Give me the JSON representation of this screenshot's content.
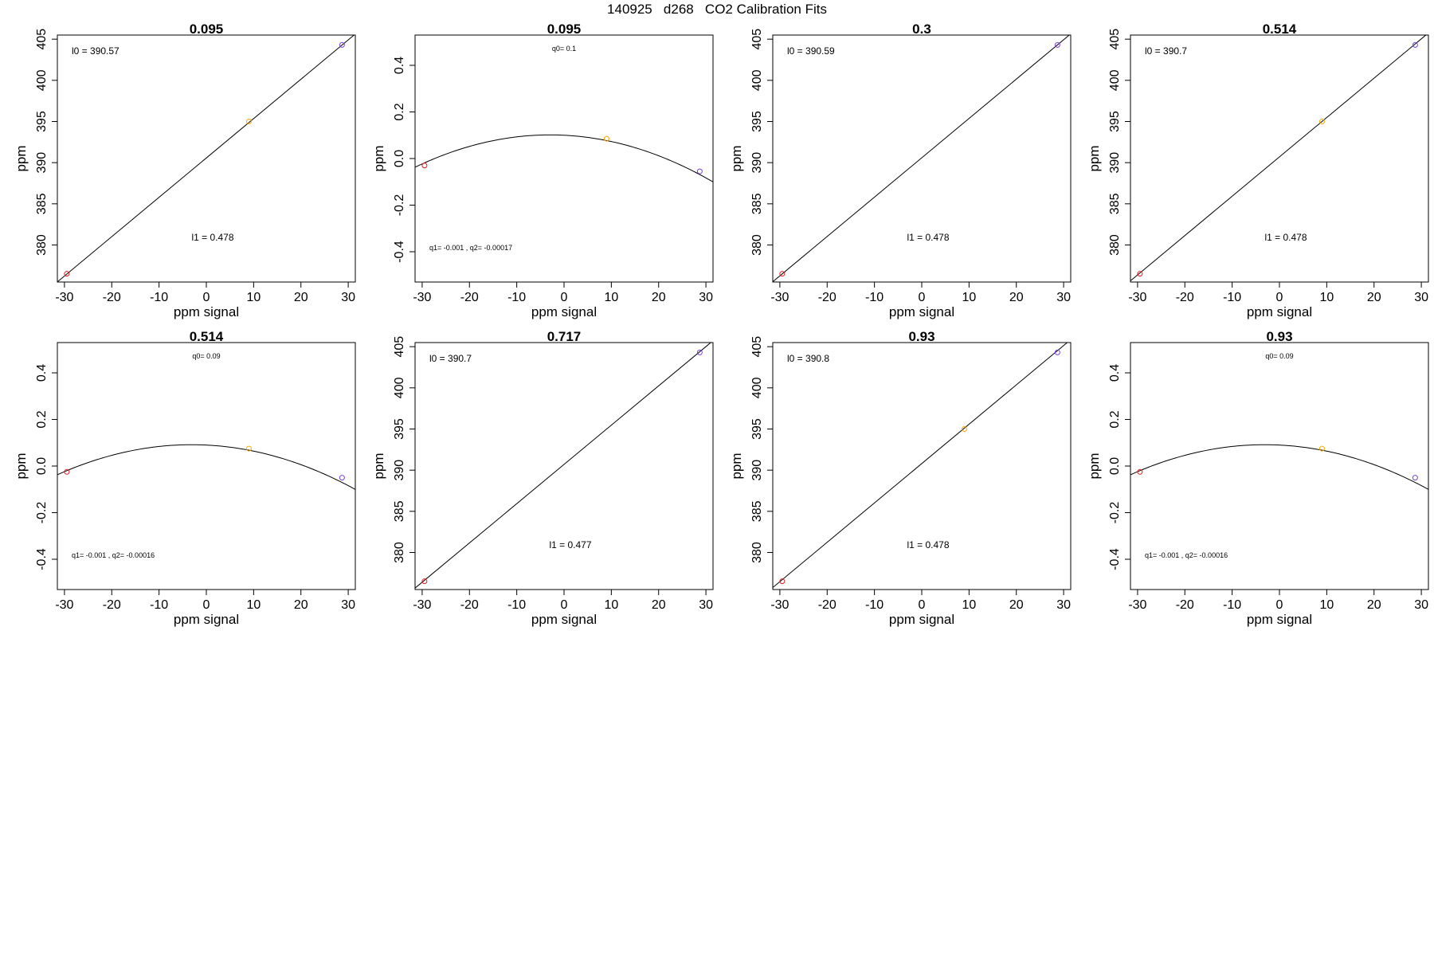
{
  "figure": {
    "title": "140925   d268   CO2 Calibration Fits"
  },
  "chart_data": [
    {
      "type": "line",
      "fit": "linear",
      "title": "0.095",
      "xlabel": "ppm signal",
      "ylabel": "ppm",
      "xlim": [
        -31.5,
        31.5
      ],
      "ylim": [
        375.5,
        405.5
      ],
      "xticks": [
        -30,
        -20,
        -10,
        0,
        10,
        20,
        30
      ],
      "yticks": [
        380,
        385,
        390,
        395,
        400,
        405
      ],
      "line": {
        "intercept": 390.57,
        "slope": 0.478
      },
      "points": [
        {
          "x": -29.5,
          "y": 376.5,
          "color": "#e31a1c"
        },
        {
          "x": 9,
          "y": 395,
          "color": "#ffa500"
        },
        {
          "x": 28.7,
          "y": 404.3,
          "color": "#7b3fe4"
        }
      ],
      "annotations": [
        "l0 =  390.57",
        "l1 =  0.478"
      ]
    },
    {
      "type": "line",
      "fit": "quadratic",
      "title": "0.095",
      "xlabel": "ppm signal",
      "ylabel": "ppm",
      "xlim": [
        -31.5,
        31.5
      ],
      "ylim": [
        -0.53,
        0.53
      ],
      "xticks": [
        -30,
        -20,
        -10,
        0,
        10,
        20,
        30
      ],
      "yticks": [
        -0.4,
        -0.2,
        0.0,
        0.2,
        0.4
      ],
      "curve": {
        "q0": 0.1,
        "q1": -0.001,
        "q2": -0.00017
      },
      "points": [
        {
          "x": -29.5,
          "y": -0.03,
          "color": "#e31a1c"
        },
        {
          "x": 9,
          "y": 0.085,
          "color": "#ffa500"
        },
        {
          "x": 28.7,
          "y": -0.055,
          "color": "#7b3fe4"
        }
      ],
      "annotations": [
        "q0= 0.1",
        "q1= -0.001 , q2= -0.00017"
      ]
    },
    {
      "type": "line",
      "fit": "linear",
      "title": "0.3",
      "xlabel": "ppm signal",
      "ylabel": "ppm",
      "xlim": [
        -31.5,
        31.5
      ],
      "ylim": [
        375.5,
        405.5
      ],
      "xticks": [
        -30,
        -20,
        -10,
        0,
        10,
        20,
        30
      ],
      "yticks": [
        380,
        385,
        390,
        395,
        400,
        405
      ],
      "line": {
        "intercept": 390.59,
        "slope": 0.478
      },
      "points": [
        {
          "x": -29.5,
          "y": 376.5,
          "color": "#e31a1c"
        },
        {
          "x": 28.7,
          "y": 404.3,
          "color": "#7b3fe4"
        }
      ],
      "annotations": [
        "l0 =  390.59",
        "l1 =  0.478"
      ]
    },
    {
      "type": "line",
      "fit": "linear",
      "title": "0.514",
      "xlabel": "ppm signal",
      "ylabel": "ppm",
      "xlim": [
        -31.5,
        31.5
      ],
      "ylim": [
        375.5,
        405.5
      ],
      "xticks": [
        -30,
        -20,
        -10,
        0,
        10,
        20,
        30
      ],
      "yticks": [
        380,
        385,
        390,
        395,
        400,
        405
      ],
      "line": {
        "intercept": 390.7,
        "slope": 0.478
      },
      "points": [
        {
          "x": -29.5,
          "y": 376.5,
          "color": "#e31a1c"
        },
        {
          "x": 9,
          "y": 395,
          "color": "#ffa500"
        },
        {
          "x": 28.7,
          "y": 404.3,
          "color": "#7b3fe4"
        }
      ],
      "annotations": [
        "l0 =  390.7",
        "l1 =  0.478"
      ]
    },
    {
      "type": "line",
      "fit": "quadratic",
      "title": "0.514",
      "xlabel": "ppm signal",
      "ylabel": "ppm",
      "xlim": [
        -31.5,
        31.5
      ],
      "ylim": [
        -0.53,
        0.53
      ],
      "xticks": [
        -30,
        -20,
        -10,
        0,
        10,
        20,
        30
      ],
      "yticks": [
        -0.4,
        -0.2,
        0.0,
        0.2,
        0.4
      ],
      "curve": {
        "q0": 0.09,
        "q1": -0.001,
        "q2": -0.00016
      },
      "points": [
        {
          "x": -29.5,
          "y": -0.025,
          "color": "#e31a1c"
        },
        {
          "x": 9,
          "y": 0.075,
          "color": "#ffa500"
        },
        {
          "x": 28.7,
          "y": -0.05,
          "color": "#7b3fe4"
        }
      ],
      "annotations": [
        "q0= 0.09",
        "q1= -0.001 , q2= -0.00016"
      ]
    },
    {
      "type": "line",
      "fit": "linear",
      "title": "0.717",
      "xlabel": "ppm signal",
      "ylabel": "ppm",
      "xlim": [
        -31.5,
        31.5
      ],
      "ylim": [
        375.5,
        405.5
      ],
      "xticks": [
        -30,
        -20,
        -10,
        0,
        10,
        20,
        30
      ],
      "yticks": [
        380,
        385,
        390,
        395,
        400,
        405
      ],
      "line": {
        "intercept": 390.7,
        "slope": 0.477
      },
      "points": [
        {
          "x": -29.5,
          "y": 376.5,
          "color": "#e31a1c"
        },
        {
          "x": 28.7,
          "y": 404.3,
          "color": "#7b3fe4"
        }
      ],
      "annotations": [
        "l0 =  390.7",
        "l1 =  0.477"
      ]
    },
    {
      "type": "line",
      "fit": "linear",
      "title": "0.93",
      "xlabel": "ppm signal",
      "ylabel": "ppm",
      "xlim": [
        -31.5,
        31.5
      ],
      "ylim": [
        375.5,
        405.5
      ],
      "xticks": [
        -30,
        -20,
        -10,
        0,
        10,
        20,
        30
      ],
      "yticks": [
        380,
        385,
        390,
        395,
        400,
        405
      ],
      "line": {
        "intercept": 390.8,
        "slope": 0.478
      },
      "points": [
        {
          "x": -29.5,
          "y": 376.5,
          "color": "#e31a1c"
        },
        {
          "x": 9,
          "y": 395,
          "color": "#ffa500"
        },
        {
          "x": 28.7,
          "y": 404.3,
          "color": "#7b3fe4"
        }
      ],
      "annotations": [
        "l0 =  390.8",
        "l1 =  0.478"
      ]
    },
    {
      "type": "line",
      "fit": "quadratic",
      "title": "0.93",
      "xlabel": "ppm signal",
      "ylabel": "ppm",
      "xlim": [
        -31.5,
        31.5
      ],
      "ylim": [
        -0.53,
        0.53
      ],
      "xticks": [
        -30,
        -20,
        -10,
        0,
        10,
        20,
        30
      ],
      "yticks": [
        -0.4,
        -0.2,
        0.0,
        0.2,
        0.4
      ],
      "curve": {
        "q0": 0.09,
        "q1": -0.001,
        "q2": -0.00016
      },
      "points": [
        {
          "x": -29.5,
          "y": -0.025,
          "color": "#e31a1c"
        },
        {
          "x": 9,
          "y": 0.075,
          "color": "#ffa500"
        },
        {
          "x": 28.7,
          "y": -0.05,
          "color": "#7b3fe4"
        }
      ],
      "annotations": [
        "q0= 0.09",
        "q1= -0.001 , q2= -0.00016"
      ]
    }
  ]
}
